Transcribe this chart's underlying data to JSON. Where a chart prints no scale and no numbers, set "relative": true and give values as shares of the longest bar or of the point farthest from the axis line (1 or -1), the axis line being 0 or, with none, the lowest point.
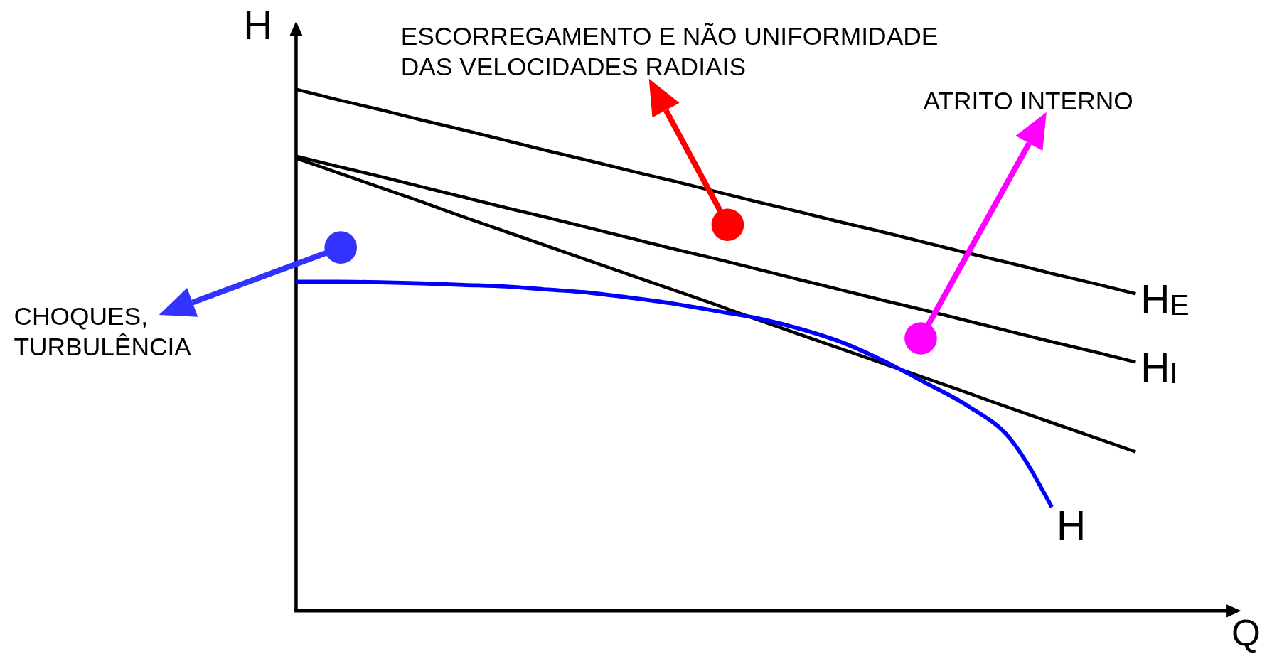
{
  "chart_data": {
    "type": "line",
    "relative": true,
    "xlabel": "Q",
    "ylabel": "H",
    "legend": false,
    "tick_labels": false,
    "categories": [
      null,
      null,
      null,
      null,
      null,
      null,
      null,
      null,
      null,
      null,
      null,
      null,
      null,
      null,
      null,
      null,
      null,
      null,
      null,
      null,
      null
    ],
    "series": [
      {
        "name": "H$_{E}$",
        "color": "#000000",
        "values": [
          1,
          0.98,
          0.961,
          0.941,
          0.922,
          0.902,
          0.882,
          0.863,
          0.843,
          0.824,
          0.804,
          0.784,
          0.765,
          0.745,
          0.726,
          0.706,
          0.686,
          0.667,
          0.647,
          0.628,
          0.608
        ]
      },
      {
        "name": "H$_{I}$",
        "color": "#000000",
        "values": [
          0.872,
          0.852,
          0.833,
          0.813,
          0.793,
          0.773,
          0.754,
          0.734,
          0.714,
          0.694,
          0.675,
          0.655,
          0.635,
          0.615,
          0.595,
          0.576,
          0.556,
          0.536,
          0.516,
          0.497,
          0.477
        ]
      },
      {
        "color": "#000000",
        "values": [
          0.868,
          0.84,
          0.812,
          0.784,
          0.755,
          0.727,
          0.699,
          0.671,
          0.643,
          0.615,
          0.587,
          0.558,
          0.53,
          0.502,
          0.474,
          0.446,
          0.418,
          0.389,
          0.361,
          0.333,
          0.305
        ]
      },
      {
        "name": "H",
        "color": "#0000ff",
        "values": [
          0.631,
          0.631,
          0.63,
          0.628,
          0.625,
          0.622,
          0.616,
          0.61,
          0.6,
          0.589,
          0.575,
          0.561,
          0.541,
          0.515,
          0.479,
          0.437,
          0.393,
          0.331,
          0.199,
          null,
          null
        ]
      }
    ],
    "annotations": [
      "ESCORREGAMENTO E NÃO UNIFORMIDADE\nDAS VELOCIDADES RADIAIS",
      "ATRITO INTERNO",
      "CHOQUES,\nTURBULÊNCIA"
    ]
  }
}
